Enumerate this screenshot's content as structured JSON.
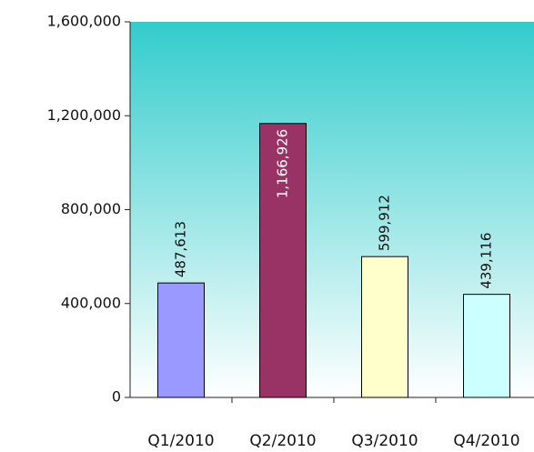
{
  "chart_data": {
    "type": "bar",
    "categories": [
      "Q1/2010",
      "Q2/2010",
      "Q3/2010",
      "Q4/2010"
    ],
    "values": [
      487613,
      1166926,
      599912,
      439116
    ],
    "value_labels": [
      "487,613",
      "1,166,926",
      "599,912",
      "439,116"
    ],
    "colors": [
      "#9999ff",
      "#993366",
      "#ffffcc",
      "#ccffff"
    ],
    "ylim": [
      0,
      1600000
    ],
    "yticks": [
      0,
      {
        "value": 400000,
        "label": "400,000"
      },
      {
        "value": 800000,
        "label": "800,000"
      },
      {
        "value": 1200000,
        "label": "1,200,000"
      },
      {
        "value": 1600000,
        "label": "1,600,000"
      }
    ],
    "grid": false
  }
}
